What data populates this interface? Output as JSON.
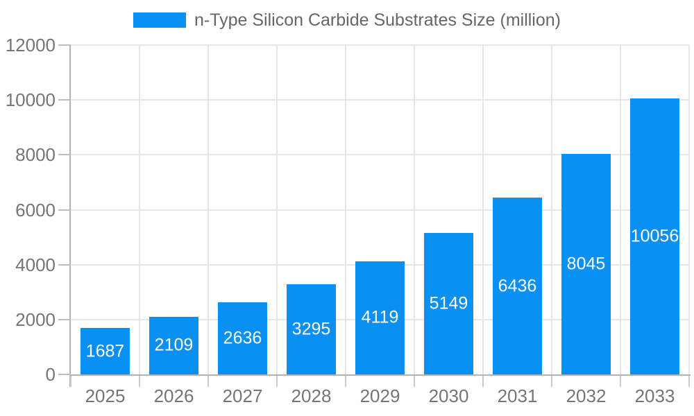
{
  "legend": {
    "position": "top",
    "items": [
      {
        "label": "n-Type Silicon Carbide Substrates Size (million)",
        "swatch_color": "#0a8ff2"
      }
    ]
  },
  "colors": {
    "bar": "#0a8ff2",
    "bar_value_label": "#ffffff",
    "gridline": "#e6e6e6",
    "axis_line": "#b3b3b3",
    "tick_mark": "#c4c4c4",
    "axis_label": "#757575",
    "legend_text": "#666666",
    "background": "#ffffff"
  },
  "chart_data": {
    "type": "bar",
    "categories": [
      "2025",
      "2026",
      "2027",
      "2028",
      "2029",
      "2030",
      "2031",
      "2032",
      "2033"
    ],
    "series": [
      {
        "name": "n-Type Silicon Carbide Substrates Size (million)",
        "values": [
          1687,
          2109,
          2636,
          3295,
          4119,
          5149,
          6436,
          8045,
          10056
        ]
      }
    ],
    "title": "",
    "xlabel": "",
    "ylabel": "",
    "ylim": [
      0,
      12000
    ],
    "yticks": [
      0,
      2000,
      4000,
      6000,
      8000,
      10000,
      12000
    ],
    "grid": true,
    "vertical_grid": true,
    "legend_position": "top-center",
    "value_labels": "inside-center"
  }
}
